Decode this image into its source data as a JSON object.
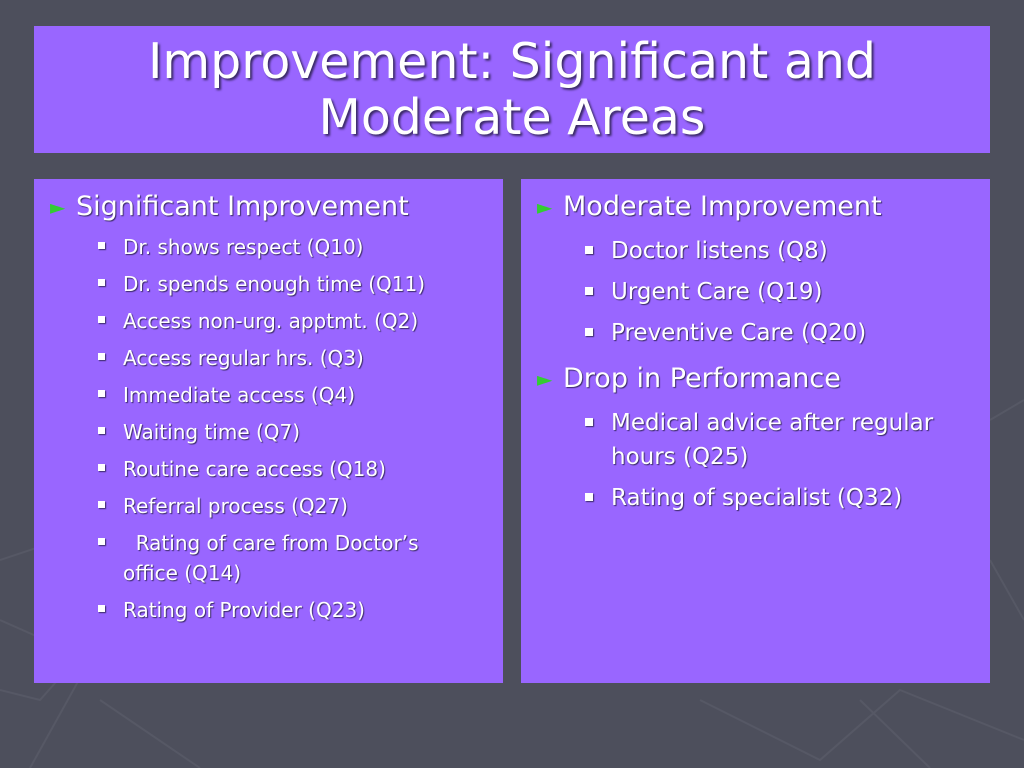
{
  "slide": {
    "title_line1": "Improvement: Significant and",
    "title_line2": "Moderate Areas"
  },
  "left_panel": {
    "heading": "Significant Improvement",
    "items": [
      "Dr. shows respect (Q10)",
      "Dr. spends enough time (Q11)",
      "Access non-urg. apptmt. (Q2)",
      "Access regular hrs. (Q3)",
      "Immediate access (Q4)",
      "Waiting time (Q7)",
      "Routine care access (Q18)",
      "Referral process (Q27)",
      "  Rating of care from Doctor’s office (Q14)",
      "Rating of Provider (Q23)"
    ]
  },
  "right_panel": {
    "heading1": "Moderate Improvement",
    "items1": [
      "Doctor listens (Q8)",
      "Urgent Care (Q19)",
      "Preventive Care (Q20)"
    ],
    "heading2": "Drop in Performance",
    "items2": [
      "Medical advice after regular hours (Q25)",
      "Rating of specialist (Q32)"
    ]
  },
  "colors": {
    "background": "#4d4f5c",
    "panel": "#9966ff",
    "arrow": "#33cc33",
    "text": "#ffffff"
  },
  "icons": {
    "level1_bullet": "right-triangle-arrow",
    "level2_bullet": "small-square"
  }
}
